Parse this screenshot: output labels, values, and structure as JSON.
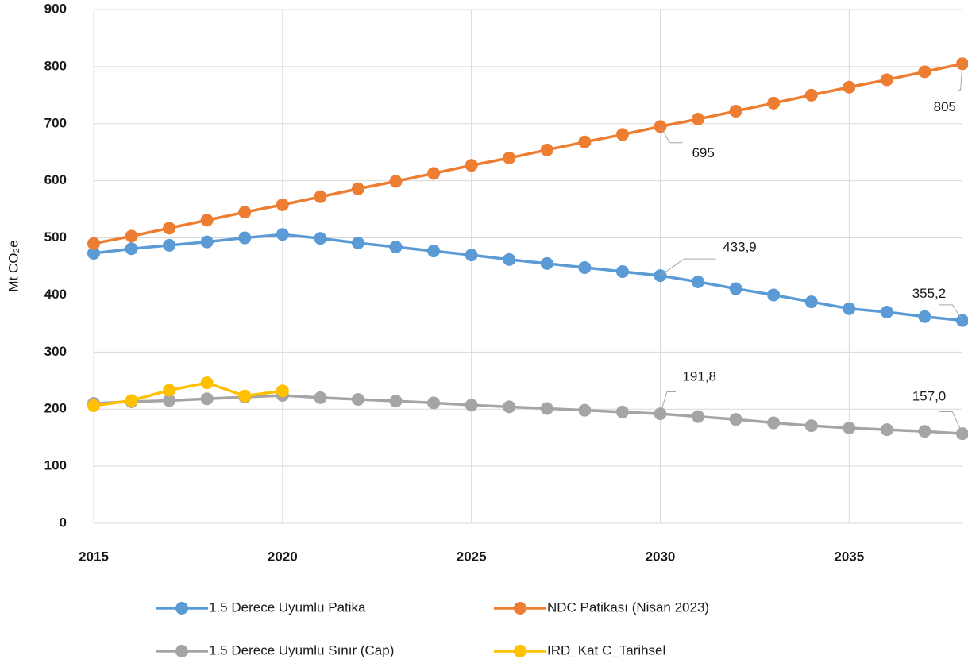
{
  "chart_data": {
    "type": "line",
    "y_label": "Mt CO₂e",
    "x": [
      2015,
      2016,
      2017,
      2018,
      2019,
      2020,
      2021,
      2022,
      2023,
      2024,
      2025,
      2026,
      2027,
      2028,
      2029,
      2030,
      2031,
      2032,
      2033,
      2034,
      2035,
      2036,
      2037,
      2038
    ],
    "xlim": [
      2015,
      2038
    ],
    "xticks": [
      2015,
      2020,
      2025,
      2030,
      2035
    ],
    "ylim": [
      0,
      900
    ],
    "yticks": [
      0,
      100,
      200,
      300,
      400,
      500,
      600,
      700,
      800,
      900
    ],
    "grid": true,
    "legend": "bottom",
    "series": [
      {
        "name": "1.5 Derece Uyumlu Patika",
        "color": "#5b9bd5",
        "values": [
          473,
          481,
          487,
          493,
          500,
          506,
          499,
          491,
          484,
          477,
          470,
          462,
          455,
          448,
          441,
          433.9,
          423,
          411,
          400,
          388,
          376,
          370,
          362,
          355.2
        ],
        "value_labels": [
          null,
          null,
          null,
          null,
          null,
          null,
          null,
          null,
          null,
          null,
          null,
          null,
          null,
          null,
          null,
          "433,9",
          null,
          null,
          null,
          null,
          null,
          null,
          null,
          "355,2"
        ]
      },
      {
        "name": "NDC Patikası (Nisan 2023)",
        "color": "#ed7d31",
        "values": [
          490,
          503,
          517,
          531,
          545,
          558,
          572,
          586,
          599,
          613,
          627,
          640,
          654,
          668,
          681,
          695,
          708,
          722,
          736,
          750,
          764,
          777,
          791,
          805
        ],
        "value_labels": [
          null,
          null,
          null,
          null,
          null,
          null,
          null,
          null,
          null,
          null,
          null,
          null,
          null,
          null,
          null,
          "695",
          null,
          null,
          null,
          null,
          null,
          null,
          null,
          "805"
        ]
      },
      {
        "name": "1.5 Derece Uyumlu Sınır (Cap)",
        "color": "#a5a5a5",
        "values": [
          210,
          213,
          215,
          218,
          221,
          224,
          220,
          217,
          214,
          211,
          207,
          204,
          201,
          198,
          195,
          191.8,
          187,
          182,
          176,
          171,
          167,
          164,
          161,
          157.0
        ],
        "value_labels": [
          null,
          null,
          null,
          null,
          null,
          null,
          null,
          null,
          null,
          null,
          null,
          null,
          null,
          null,
          null,
          "191,8",
          null,
          null,
          null,
          null,
          null,
          null,
          null,
          "157,0"
        ]
      },
      {
        "name": "IRD_Kat C_Tarihsel",
        "color": "#ffc000",
        "values": [
          206,
          215,
          233,
          246,
          223,
          232,
          null,
          null,
          null,
          null,
          null,
          null,
          null,
          null,
          null,
          null,
          null,
          null,
          null,
          null,
          null,
          null,
          null,
          null
        ]
      }
    ]
  }
}
